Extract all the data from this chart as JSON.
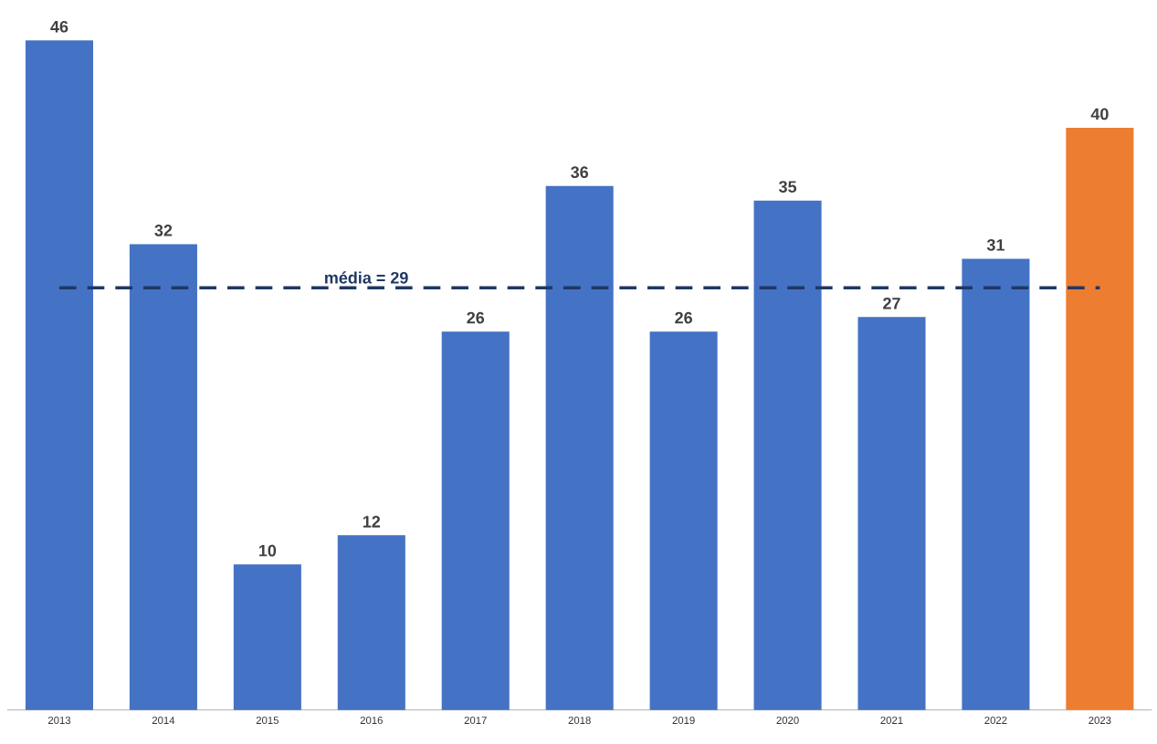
{
  "chart_data": {
    "type": "bar",
    "categories": [
      "2013",
      "2014",
      "2015",
      "2016",
      "2017",
      "2018",
      "2019",
      "2020",
      "2021",
      "2022",
      "2023"
    ],
    "values": [
      46,
      32,
      10,
      12,
      26,
      36,
      26,
      35,
      27,
      31,
      40
    ],
    "colors": [
      "#4472c4",
      "#4472c4",
      "#4472c4",
      "#4472c4",
      "#4472c4",
      "#4472c4",
      "#4472c4",
      "#4472c4",
      "#4472c4",
      "#4472c4",
      "#ed7d31"
    ],
    "data_labels": true,
    "ref_lines": [
      {
        "axis": "y",
        "value": 29,
        "label": "média = 29",
        "color": "#1f3864",
        "line_style": "dashed"
      }
    ]
  }
}
